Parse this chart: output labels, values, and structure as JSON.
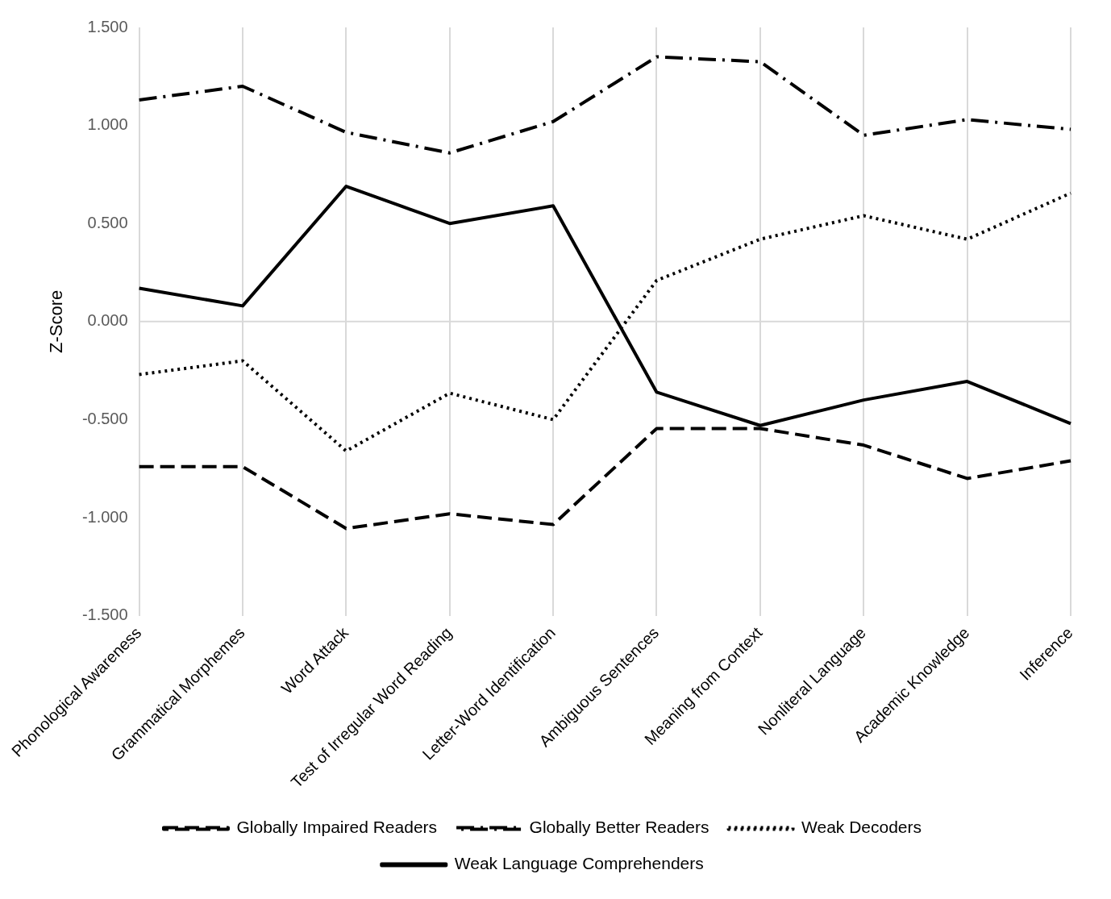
{
  "chart_data": {
    "type": "line",
    "ylabel": "Z-Score",
    "categories": [
      "Phonological Awareness",
      "Grammatical Morphemes",
      "Word Attack",
      "Test of Irregular Word Reading",
      "Letter-Word Identification",
      "Ambiguous Sentences",
      "Meaning from Context",
      "Nonliteral Language",
      "Academic Knowledge",
      "Inference"
    ],
    "series": [
      {
        "name": "Globally Impaired Readers",
        "color": "#000000",
        "line_style": "dashed",
        "values": [
          -0.74,
          -0.74,
          -1.055,
          -0.98,
          -1.035,
          -0.545,
          -0.545,
          -0.63,
          -0.8,
          -0.71
        ]
      },
      {
        "name": "Globally Better Readers",
        "color": "#000000",
        "line_style": "dashdot",
        "values": [
          1.13,
          1.2,
          0.965,
          0.86,
          1.02,
          1.35,
          1.325,
          0.95,
          1.03,
          0.98
        ]
      },
      {
        "name": "Weak Decoders",
        "color": "#000000",
        "line_style": "dotted",
        "values": [
          -0.27,
          -0.2,
          -0.66,
          -0.365,
          -0.5,
          0.21,
          0.42,
          0.54,
          0.42,
          0.655
        ]
      },
      {
        "name": "Weak Language Comprehenders",
        "color": "#000000",
        "line_style": "solid",
        "values": [
          0.17,
          0.08,
          0.69,
          0.5,
          0.59,
          -0.36,
          -0.53,
          -0.4,
          -0.305,
          -0.52
        ]
      }
    ],
    "ylim": [
      -1.5,
      1.5
    ],
    "yticks": [
      {
        "value": -1.5,
        "label": "-1.500"
      },
      {
        "value": -1,
        "label": "-1.000"
      },
      {
        "value": -0.5,
        "label": "-0.500"
      },
      {
        "value": 0,
        "label": "0.000"
      },
      {
        "value": 0.5,
        "label": "0.500"
      },
      {
        "value": 1,
        "label": "1.000"
      },
      {
        "value": 1.5,
        "label": "1.500"
      }
    ],
    "ref_lines": [
      {
        "axis": "y",
        "value": 0,
        "color": "#d9d9d9"
      }
    ],
    "grid": "x",
    "legend": "bottom",
    "marker": "none"
  }
}
